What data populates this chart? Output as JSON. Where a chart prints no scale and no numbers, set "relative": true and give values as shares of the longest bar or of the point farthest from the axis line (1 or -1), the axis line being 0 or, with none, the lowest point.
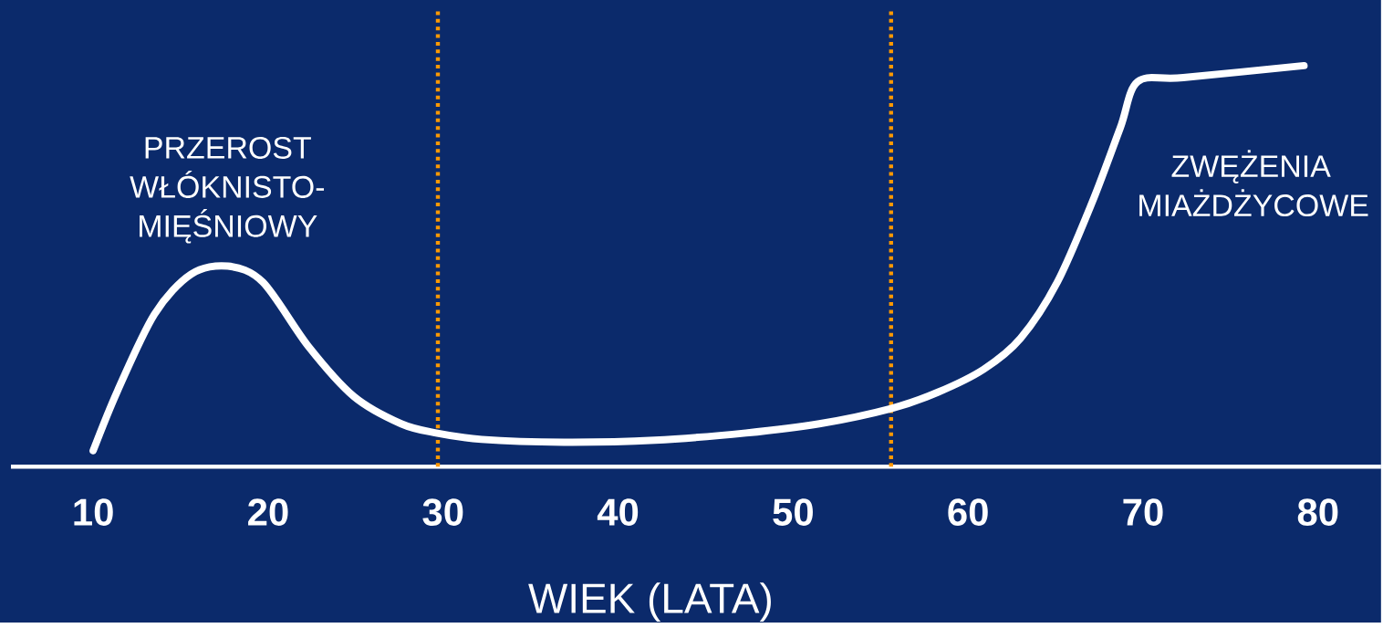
{
  "chart_data": {
    "type": "line",
    "relative": true,
    "xlabel": "WIEK (LATA)",
    "x": [
      10,
      11.4,
      13.5,
      15.6,
      17.7,
      19.7,
      22.3,
      24.9,
      27.6,
      29.6,
      32.2,
      36.9,
      42.1,
      47.3,
      51.5,
      55.6,
      58.3,
      60.9,
      63.0,
      65.1,
      67.1,
      68.7,
      69.7,
      72.3,
      79.2
    ],
    "values": [
      0.04,
      0.19,
      0.38,
      0.48,
      0.5,
      0.46,
      0.3,
      0.175,
      0.107,
      0.084,
      0.068,
      0.061,
      0.066,
      0.084,
      0.107,
      0.145,
      0.186,
      0.243,
      0.32,
      0.46,
      0.66,
      0.845,
      0.96,
      0.97,
      1.0
    ],
    "color": "#ffffff",
    "xlim": [
      5.3,
      83.6
    ],
    "xticks": [
      10,
      20,
      30,
      40,
      50,
      60,
      70,
      80
    ],
    "ref_lines": [
      {
        "axis": "x",
        "value": 29.7,
        "color": "#ff9900",
        "line_style": "dotted"
      },
      {
        "axis": "x",
        "value": 55.6,
        "color": "#ff9900",
        "line_style": "dotted"
      }
    ],
    "annotations": [
      "PRZEROST WŁÓKNISTO-MIĘŚNIOWY",
      "ZWĘŻENIA MIAŻDŻYCOWE"
    ]
  }
}
